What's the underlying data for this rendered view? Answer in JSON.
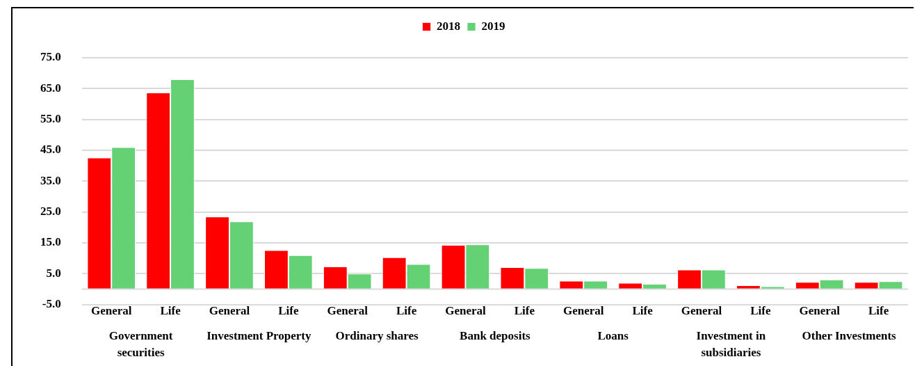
{
  "chart_data": {
    "type": "bar",
    "categories": [
      "General",
      "Life",
      "General",
      "Life",
      "General",
      "Life",
      "General",
      "Life",
      "General",
      "Life",
      "General",
      "Life",
      "General",
      "Life"
    ],
    "annotations": [
      "Government securities",
      "Investment Property",
      "Ordinary shares",
      "Bank deposits",
      "Loans",
      "Investment in subsidiaries",
      "Other Investments"
    ],
    "series": [
      {
        "name": "2018",
        "color": "#ff0000",
        "values": [
          42.6,
          63.7,
          23.5,
          12.6,
          7.3,
          10.3,
          14.3,
          7.1,
          2.7,
          2.0,
          6.3,
          1.2,
          2.3,
          2.3
        ]
      },
      {
        "name": "2019",
        "color": "#63d174",
        "values": [
          46.0,
          68.0,
          21.9,
          11.0,
          5.0,
          8.1,
          14.5,
          6.8,
          2.7,
          1.7,
          6.3,
          0.9,
          3.1,
          2.5
        ]
      }
    ],
    "ylim": [
      -5,
      75
    ],
    "yticks": [
      {
        "value": -5,
        "label": "-5.0"
      },
      {
        "value": 5,
        "label": "5.0"
      },
      {
        "value": 15,
        "label": "15.0"
      },
      {
        "value": 25,
        "label": "25.0"
      },
      {
        "value": 35,
        "label": "35.0"
      },
      {
        "value": 45,
        "label": "45.0"
      },
      {
        "value": 55,
        "label": "55.0"
      },
      {
        "value": 65,
        "label": "65.0"
      },
      {
        "value": 75,
        "label": "75.0"
      }
    ],
    "ref_lines": [
      {
        "axis": "y",
        "value": 0,
        "color": "#d9d9d9"
      }
    ],
    "grid": "y",
    "legend": "top"
  }
}
